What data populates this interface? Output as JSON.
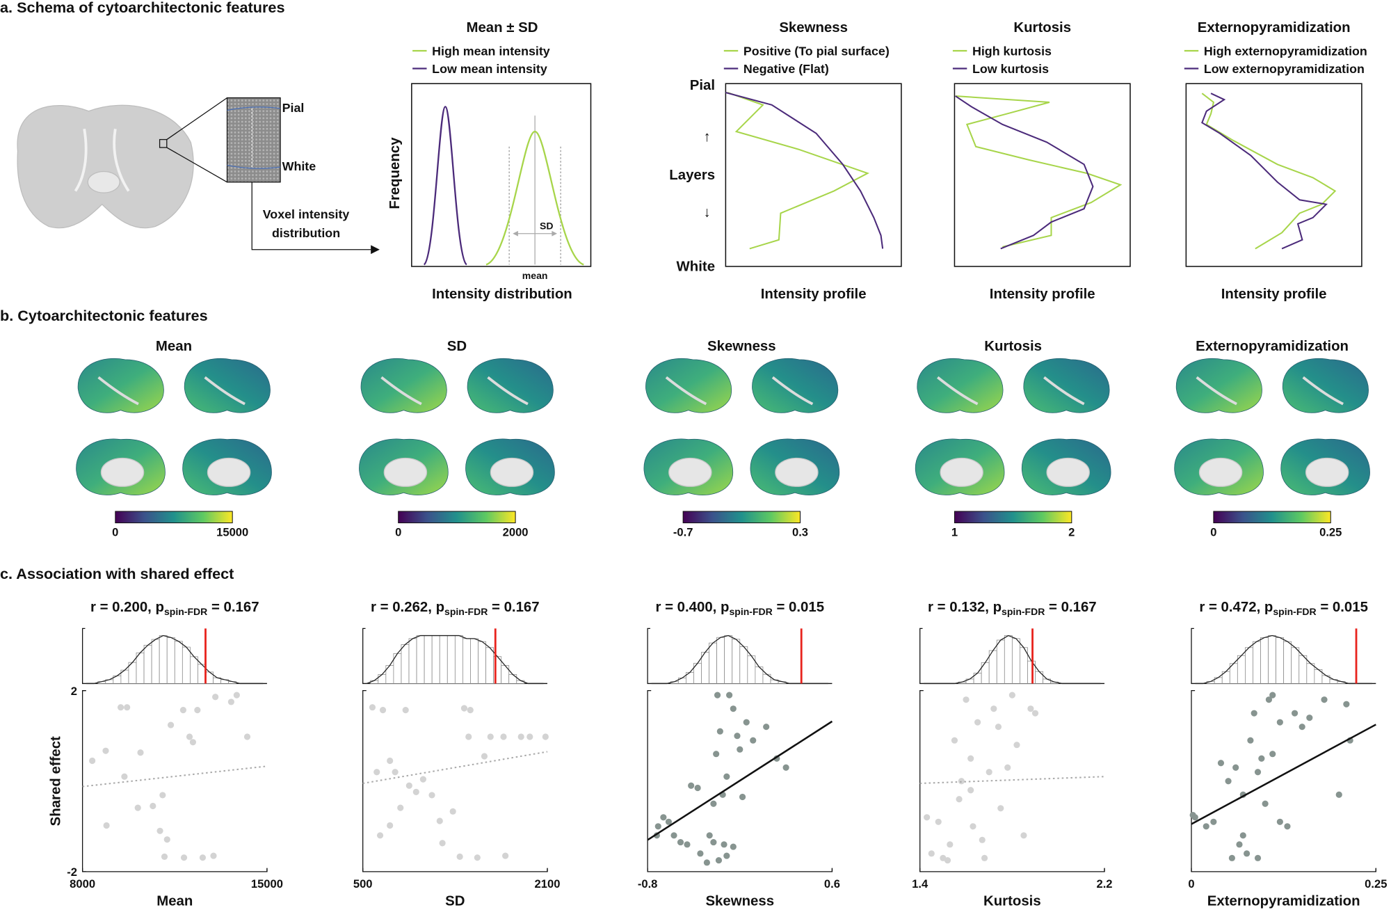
{
  "section_a": {
    "title": "a. Schema of cytoarchitectonic features",
    "inset_labels": [
      "Pial",
      "White"
    ],
    "voxel_label": [
      "Voxel intensity",
      "distribution"
    ],
    "legend_colors": [
      "#a7d54a",
      "#4b2a7a"
    ],
    "mean_panel": {
      "title": "Mean ± SD",
      "legend": [
        "High mean intensity",
        "Low mean intensity"
      ],
      "ylabel": "Frequency",
      "xlabel": "Intensity distribution",
      "annotations": [
        "SD",
        "mean"
      ]
    },
    "profile_axis_labels": [
      "Pial",
      "↑",
      "Layers",
      "↓",
      "White"
    ],
    "profile_panels": [
      {
        "title": "Skewness",
        "legend": [
          "Positive (To pial surface)",
          "Negative (Flat)"
        ],
        "xlabel": "Intensity profile"
      },
      {
        "title": "Kurtosis",
        "legend": [
          "High kurtosis",
          "Low kurtosis"
        ],
        "xlabel": "Intensity profile"
      },
      {
        "title": "Externopyramidization",
        "legend": [
          "High externopyramidization",
          "Low externopyramidization"
        ],
        "xlabel": "Intensity profile"
      }
    ]
  },
  "section_b": {
    "title": "b. Cytoarchitectonic features",
    "maps": [
      {
        "title": "Mean",
        "colorbar": [
          "0",
          "15000"
        ]
      },
      {
        "title": "SD",
        "colorbar": [
          "0",
          "2000"
        ]
      },
      {
        "title": "Skewness",
        "colorbar": [
          "-0.7",
          "0.3"
        ]
      },
      {
        "title": "Kurtosis",
        "colorbar": [
          "1",
          "2"
        ]
      },
      {
        "title": "Externopyramidization",
        "colorbar": [
          "0",
          "0.25"
        ]
      }
    ]
  },
  "section_c": {
    "title": "c. Association with shared effect",
    "ylabel": "Shared effect",
    "ylim": [
      -2,
      2
    ],
    "yticks": [
      -2,
      2
    ],
    "hist_bins": [
      -0.6,
      -0.55,
      -0.5,
      -0.45,
      -0.4,
      -0.35,
      -0.3,
      -0.25,
      -0.2,
      -0.15,
      -0.1,
      -0.05,
      0,
      0.05,
      0.1,
      0.15,
      0.2,
      0.25,
      0.3,
      0.35,
      0.4,
      0.45,
      0.5,
      0.55,
      0.6
    ],
    "observed_color": "#e8231d",
    "chart_data": [
      {
        "type": "scatter",
        "title": [
          "r = 0.200, p",
          "spin-FDR",
          " = 0.167"
        ],
        "r": 0.2,
        "significant": false,
        "color": "#d3d3d3",
        "xlabel": "Mean",
        "xlim": [
          8000,
          15000
        ],
        "xticks": [
          8000,
          15000
        ],
        "x": [
          8370,
          8880,
          9450,
          9690,
          10200,
          9590,
          8910,
          10100,
          10670,
          11040,
          10940,
          11110,
          11350,
          11820,
          12060,
          12190,
          11850,
          12360,
          12560,
          12970,
          13040,
          13640,
          13850,
          14250,
          11210
        ],
        "y": [
          0.45,
          0.67,
          1.63,
          1.63,
          0.63,
          0.1,
          -0.98,
          -0.59,
          -0.55,
          -0.31,
          -1.1,
          -1.67,
          1.24,
          1.57,
          0.98,
          0.86,
          -1.69,
          1.57,
          -1.69,
          -1.65,
          1.86,
          1.75,
          1.9,
          0.98,
          -1.29
        ],
        "fit": [
          [
            8000,
            -0.12
          ],
          [
            15000,
            0.33
          ]
        ],
        "hist_counts": [
          0,
          0,
          1,
          2,
          4,
          7,
          11,
          16,
          20,
          23,
          25,
          24,
          22,
          19,
          14,
          10,
          6,
          3,
          2,
          1,
          0,
          0,
          0,
          0
        ]
      },
      {
        "type": "scatter",
        "title": [
          "r = 0.262, p",
          "spin-FDR",
          " = 0.167"
        ],
        "r": 0.262,
        "significant": false,
        "color": "#d3d3d3",
        "xlabel": "SD",
        "xlim": [
          500,
          2100
        ],
        "xticks": [
          500,
          2100
        ],
        "x": [
          583,
          674,
          621,
          735,
          780,
          871,
          902,
          826,
          962,
          1023,
          1099,
          1167,
          1190,
          1341,
          1379,
          1432,
          1417,
          1493,
          1554,
          1607,
          1720,
          1736,
          1948,
          2084,
          1872,
          1281,
          735,
          650
        ],
        "y": [
          1.63,
          1.57,
          0.2,
          0.45,
          0.2,
          1.57,
          -0.1,
          -0.59,
          -0.24,
          0.04,
          -0.31,
          -0.88,
          -1.37,
          -1.67,
          1.61,
          1.57,
          0.98,
          -1.69,
          0.55,
          0.98,
          0.98,
          -1.65,
          0.98,
          0.98,
          0.98,
          -0.67,
          -0.98,
          -1.2
        ],
        "fit": [
          [
            500,
            -0.05
          ],
          [
            2100,
            0.65
          ]
        ],
        "hist_counts": [
          0,
          1,
          3,
          6,
          10,
          13,
          15,
          16,
          16,
          16,
          16,
          16,
          16,
          15,
          15,
          14,
          12,
          9,
          6,
          3,
          1,
          0,
          0,
          0
        ]
      },
      {
        "type": "scatter",
        "title": [
          "r = 0.400, p",
          "spin-FDR",
          " = 0.015"
        ],
        "r": 0.4,
        "significant": true,
        "color": "#879490",
        "xlabel": "Skewness",
        "xlim": [
          -0.8,
          0.6
        ],
        "xticks": [
          -0.8,
          0.6
        ],
        "x": [
          -0.73,
          -0.72,
          -0.68,
          -0.64,
          -0.6,
          -0.55,
          -0.5,
          -0.47,
          -0.42,
          -0.4,
          -0.35,
          -0.33,
          -0.3,
          -0.28,
          -0.27,
          -0.25,
          -0.23,
          -0.22,
          -0.2,
          -0.18,
          -0.15,
          -0.12,
          -0.1,
          -0.08,
          -0.05,
          0,
          0.1,
          0.18,
          0.25,
          -0.26,
          -0.3,
          -0.2,
          -0.15
        ],
        "y": [
          -1.2,
          -1,
          -0.8,
          -0.9,
          -1.2,
          -1.35,
          -1.4,
          -0.1,
          -0.15,
          -1.6,
          -1.8,
          -1.2,
          -1.35,
          0.6,
          1.9,
          1.1,
          -0.3,
          -1.4,
          -1.65,
          1.9,
          1.6,
          1,
          0.7,
          -0.35,
          1.3,
          0.9,
          1.2,
          0.5,
          0.3,
          -1.75,
          -0.5,
          0.1,
          -1.45
        ],
        "fit": [
          [
            -0.8,
            -1.3
          ],
          [
            0.6,
            1.32
          ]
        ],
        "hist_counts": [
          0,
          0,
          0,
          1,
          3,
          6,
          11,
          17,
          22,
          25,
          26,
          24,
          20,
          15,
          9,
          5,
          2,
          1,
          0,
          0,
          0,
          0,
          0,
          0
        ]
      },
      {
        "type": "scatter",
        "title": [
          "r = 0.132, p",
          "spin-FDR",
          " = 0.167"
        ],
        "r": 0.132,
        "significant": false,
        "color": "#d3d3d3",
        "xlabel": "Kurtosis",
        "xlim": [
          1.4,
          2.2
        ],
        "xticks": [
          1.4,
          2.2
        ],
        "x": [
          1.43,
          1.45,
          1.48,
          1.5,
          1.52,
          1.55,
          1.57,
          1.6,
          1.62,
          1.63,
          1.65,
          1.67,
          1.7,
          1.72,
          1.75,
          1.78,
          1.8,
          1.82,
          1.85,
          1.88,
          1.9,
          1.62,
          1.58,
          1.53,
          1.68,
          1.74
        ],
        "y": [
          -0.8,
          -1.6,
          -0.9,
          -1.7,
          -1.75,
          0.9,
          -0.4,
          1.8,
          0.5,
          -1,
          1.3,
          -1.3,
          0.2,
          1.6,
          -0.6,
          0.3,
          1.9,
          0.8,
          -1.2,
          1.6,
          1.5,
          -0.2,
          0,
          -1.4,
          -1.7,
          1.2
        ],
        "fit": [
          [
            1.4,
            -0.05
          ],
          [
            2.2,
            0.1
          ]
        ],
        "hist_counts": [
          0,
          0,
          0,
          0,
          0,
          1,
          3,
          7,
          14,
          22,
          29,
          32,
          30,
          24,
          15,
          8,
          3,
          1,
          0,
          0,
          0,
          0,
          0,
          0
        ]
      },
      {
        "type": "scatter",
        "title": [
          "r = 0.472, p",
          "spin-FDR",
          " = 0.015"
        ],
        "r": 0.472,
        "significant": true,
        "color": "#879490",
        "xlabel": "Externopyramidization",
        "xlim": [
          0,
          0.25
        ],
        "xticks": [
          0,
          0.25
        ],
        "x": [
          0.002,
          0.005,
          0.02,
          0.03,
          0.04,
          0.05,
          0.055,
          0.06,
          0.065,
          0.07,
          0.075,
          0.08,
          0.085,
          0.09,
          0.095,
          0.1,
          0.105,
          0.11,
          0.12,
          0.13,
          0.14,
          0.15,
          0.16,
          0.18,
          0.2,
          0.21,
          0.215,
          0.12,
          0.07,
          0.09,
          0.11
        ],
        "y": [
          -0.75,
          -0.8,
          -1,
          -0.9,
          0.4,
          0,
          -1.7,
          0.3,
          -1.4,
          -0.3,
          -1.6,
          0.9,
          1.5,
          -1.7,
          0.5,
          -0.5,
          1.8,
          1.9,
          1.3,
          -1,
          1.5,
          1.2,
          1.4,
          1.8,
          -0.3,
          1.7,
          0.9,
          -0.9,
          -1.2,
          0.2,
          0.6
        ],
        "fit": [
          [
            0,
            -0.95
          ],
          [
            0.25,
            1.25
          ]
        ],
        "hist_counts": [
          0,
          0,
          1,
          3,
          6,
          10,
          14,
          18,
          21,
          23,
          24,
          23,
          21,
          18,
          14,
          10,
          7,
          4,
          2,
          1,
          0,
          0,
          0,
          0
        ]
      }
    ]
  }
}
